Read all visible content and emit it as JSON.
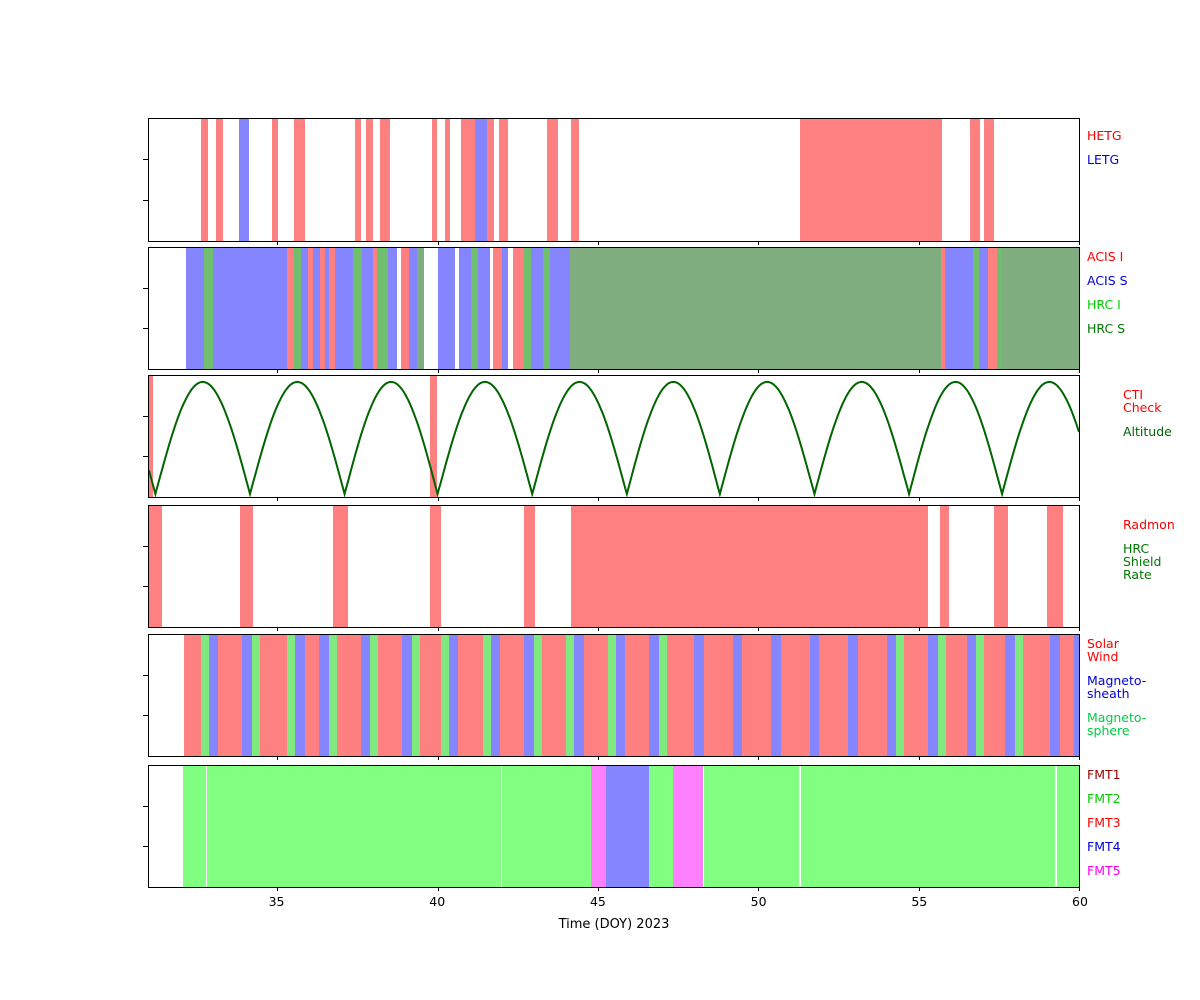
{
  "chart_data": {
    "type": "timeline-bands",
    "title": "",
    "xlabel": "Time (DOY) 2023",
    "x_range": [
      31,
      60
    ],
    "x_ticks": [
      35,
      40,
      45,
      50,
      55,
      60
    ],
    "grid": false,
    "legend_position": "right",
    "series_colors": {
      "HETG": "#ff8080",
      "LETG": "#8585ff",
      "ACIS_I": "#ff8080",
      "ACIS_S": "#8585ff",
      "HRC_I": "#6fbf6f",
      "HRC_S": "#7fad7f",
      "CTI": "#ff8080",
      "RADMON": "#ff8080",
      "SW": "#ff8080",
      "MSH": "#8585ff",
      "MSP": "#7fe87f",
      "FMT1": "#a05050",
      "FMT2": "#80ff80",
      "FMT3": "#ff8080",
      "FMT4": "#8585ff",
      "FMT5": "#ff80ff"
    },
    "altitude_curve_color": "#006400",
    "panels": [
      {
        "id": "gratings",
        "legend": [
          {
            "label": "HETG",
            "color": "#ff0000"
          },
          {
            "label": "LETG",
            "color": "#0000dd"
          }
        ],
        "bands": [
          {
            "series": "HETG",
            "start": 32.62,
            "end": 32.85
          },
          {
            "series": "HETG",
            "start": 33.08,
            "end": 33.3
          },
          {
            "series": "LETG",
            "start": 33.82,
            "end": 34.12
          },
          {
            "series": "HETG",
            "start": 34.82,
            "end": 35.02
          },
          {
            "series": "HETG",
            "start": 35.52,
            "end": 35.88
          },
          {
            "series": "HETG",
            "start": 37.42,
            "end": 37.6
          },
          {
            "series": "HETG",
            "start": 37.76,
            "end": 37.98
          },
          {
            "series": "HETG",
            "start": 38.2,
            "end": 38.5
          },
          {
            "series": "HETG",
            "start": 39.82,
            "end": 39.98
          },
          {
            "series": "HETG",
            "start": 40.22,
            "end": 40.4
          },
          {
            "series": "HETG",
            "start": 40.72,
            "end": 41.18
          },
          {
            "series": "LETG",
            "start": 41.18,
            "end": 41.55
          },
          {
            "series": "HETG",
            "start": 41.55,
            "end": 41.75
          },
          {
            "series": "HETG",
            "start": 41.9,
            "end": 42.2
          },
          {
            "series": "HETG",
            "start": 43.42,
            "end": 43.75
          },
          {
            "series": "HETG",
            "start": 44.15,
            "end": 44.4
          },
          {
            "series": "HETG",
            "start": 51.3,
            "end": 55.72
          },
          {
            "series": "HETG",
            "start": 56.6,
            "end": 56.9
          },
          {
            "series": "HETG",
            "start": 57.05,
            "end": 57.35
          }
        ]
      },
      {
        "id": "instruments",
        "legend": [
          {
            "label": "ACIS I",
            "color": "#ff0000"
          },
          {
            "label": "ACIS S",
            "color": "#0000dd"
          },
          {
            "label": "HRC I",
            "color": "#00cc00"
          },
          {
            "label": "HRC S",
            "color": "#007700"
          }
        ],
        "bands": [
          {
            "series": "ACIS_S",
            "start": 32.15,
            "end": 32.72
          },
          {
            "series": "HRC_I",
            "start": 32.72,
            "end": 33.0
          },
          {
            "series": "ACIS_S",
            "start": 33.0,
            "end": 35.3
          },
          {
            "series": "ACIS_I",
            "start": 35.3,
            "end": 35.52
          },
          {
            "series": "HRC_I",
            "start": 35.52,
            "end": 35.74
          },
          {
            "series": "ACIS_S",
            "start": 35.74,
            "end": 35.95
          },
          {
            "series": "ACIS_I",
            "start": 35.95,
            "end": 36.12
          },
          {
            "series": "ACIS_S",
            "start": 36.12,
            "end": 36.32
          },
          {
            "series": "ACIS_I",
            "start": 36.32,
            "end": 36.48
          },
          {
            "series": "ACIS_S",
            "start": 36.48,
            "end": 36.62
          },
          {
            "series": "ACIS_I",
            "start": 36.62,
            "end": 36.8
          },
          {
            "series": "ACIS_S",
            "start": 36.8,
            "end": 37.35
          },
          {
            "series": "HRC_I",
            "start": 37.35,
            "end": 37.65
          },
          {
            "series": "ACIS_S",
            "start": 37.65,
            "end": 38.0
          },
          {
            "series": "ACIS_I",
            "start": 38.0,
            "end": 38.12
          },
          {
            "series": "HRC_I",
            "start": 38.12,
            "end": 38.45
          },
          {
            "series": "ACIS_S",
            "start": 38.45,
            "end": 38.72
          },
          {
            "series": "ACIS_I",
            "start": 38.85,
            "end": 39.1
          },
          {
            "series": "ACIS_S",
            "start": 39.1,
            "end": 39.35
          },
          {
            "series": "HRC_S",
            "start": 39.35,
            "end": 39.58
          },
          {
            "series": "ACIS_S",
            "start": 40.0,
            "end": 40.55
          },
          {
            "series": "ACIS_S",
            "start": 40.68,
            "end": 41.05
          },
          {
            "series": "HRC_I",
            "start": 41.05,
            "end": 41.25
          },
          {
            "series": "ACIS_S",
            "start": 41.25,
            "end": 41.62
          },
          {
            "series": "ACIS_I",
            "start": 41.72,
            "end": 42.0
          },
          {
            "series": "ACIS_S",
            "start": 42.0,
            "end": 42.2
          },
          {
            "series": "ACIS_I",
            "start": 42.35,
            "end": 42.68
          },
          {
            "series": "HRC_I",
            "start": 42.68,
            "end": 42.9
          },
          {
            "series": "ACIS_S",
            "start": 42.9,
            "end": 43.3
          },
          {
            "series": "HRC_I",
            "start": 43.3,
            "end": 43.5
          },
          {
            "series": "ACIS_S",
            "start": 43.5,
            "end": 44.12
          },
          {
            "series": "HRC_S",
            "start": 44.12,
            "end": 55.7
          },
          {
            "series": "ACIS_I",
            "start": 55.7,
            "end": 55.82
          },
          {
            "series": "ACIS_S",
            "start": 55.82,
            "end": 56.7
          },
          {
            "series": "HRC_I",
            "start": 56.7,
            "end": 56.88
          },
          {
            "series": "ACIS_S",
            "start": 56.88,
            "end": 57.15
          },
          {
            "series": "ACIS_I",
            "start": 57.15,
            "end": 57.45
          },
          {
            "series": "HRC_I",
            "start": 57.45,
            "end": 57.6
          },
          {
            "series": "HRC_S",
            "start": 57.6,
            "end": 60.0
          }
        ]
      },
      {
        "id": "altitude",
        "legend": [
          {
            "label": "CTI\nCheck",
            "color": "#ff0000"
          },
          {
            "label": "Altitude",
            "color": "#006400"
          }
        ],
        "bands": [
          {
            "series": "CTI",
            "start": 31.0,
            "end": 31.12
          },
          {
            "series": "CTI",
            "start": 39.75,
            "end": 39.98
          }
        ],
        "altitude": {
          "perigees": [
            28.25,
            31.2,
            34.15,
            37.1,
            40.0,
            42.95,
            45.9,
            48.8,
            51.75,
            54.7,
            57.6,
            60.55
          ]
        }
      },
      {
        "id": "radmon",
        "legend": [
          {
            "label": "Radmon",
            "color": "#ff0000"
          },
          {
            "label": "HRC\nShield\nRate",
            "color": "#007700"
          }
        ],
        "bands": [
          {
            "series": "RADMON",
            "start": 31.0,
            "end": 31.4
          },
          {
            "series": "RADMON",
            "start": 33.85,
            "end": 34.25
          },
          {
            "series": "RADMON",
            "start": 36.75,
            "end": 37.2
          },
          {
            "series": "RADMON",
            "start": 39.75,
            "end": 40.12
          },
          {
            "series": "RADMON",
            "start": 42.68,
            "end": 43.05
          },
          {
            "series": "RADMON",
            "start": 44.15,
            "end": 55.28
          },
          {
            "series": "RADMON",
            "start": 55.65,
            "end": 55.95
          },
          {
            "series": "RADMON",
            "start": 57.35,
            "end": 57.8
          },
          {
            "series": "RADMON",
            "start": 59.0,
            "end": 59.5
          }
        ]
      },
      {
        "id": "solarwind",
        "legend": [
          {
            "label": "Solar\nWind",
            "color": "#ff0000"
          },
          {
            "label": "Magneto-\nsheath",
            "color": "#0000dd"
          },
          {
            "label": "Magneto-\nsphere",
            "color": "#00cc44"
          }
        ],
        "bands": [
          {
            "series": "SW",
            "start": 32.1,
            "end": 32.62
          },
          {
            "series": "MSP",
            "start": 32.62,
            "end": 32.88
          },
          {
            "series": "MSH",
            "start": 32.88,
            "end": 33.15
          },
          {
            "series": "SW",
            "start": 33.15,
            "end": 33.9
          },
          {
            "series": "MSH",
            "start": 33.9,
            "end": 34.2
          },
          {
            "series": "MSP",
            "start": 34.2,
            "end": 34.45
          },
          {
            "series": "SW",
            "start": 34.45,
            "end": 35.3
          },
          {
            "series": "MSP",
            "start": 35.3,
            "end": 35.55
          },
          {
            "series": "MSH",
            "start": 35.55,
            "end": 35.85
          },
          {
            "series": "SW",
            "start": 35.85,
            "end": 36.3
          },
          {
            "series": "MSH",
            "start": 36.3,
            "end": 36.6
          },
          {
            "series": "MSP",
            "start": 36.6,
            "end": 36.85
          },
          {
            "series": "SW",
            "start": 36.85,
            "end": 37.6
          },
          {
            "series": "MSH",
            "start": 37.6,
            "end": 37.9
          },
          {
            "series": "MSP",
            "start": 37.9,
            "end": 38.15
          },
          {
            "series": "SW",
            "start": 38.15,
            "end": 38.9
          },
          {
            "series": "MSH",
            "start": 38.9,
            "end": 39.2
          },
          {
            "series": "MSP",
            "start": 39.2,
            "end": 39.45
          },
          {
            "series": "SW",
            "start": 39.45,
            "end": 40.1
          },
          {
            "series": "MSP",
            "start": 40.1,
            "end": 40.35
          },
          {
            "series": "MSH",
            "start": 40.35,
            "end": 40.65
          },
          {
            "series": "SW",
            "start": 40.65,
            "end": 41.4
          },
          {
            "series": "MSP",
            "start": 41.4,
            "end": 41.65
          },
          {
            "series": "MSH",
            "start": 41.65,
            "end": 41.95
          },
          {
            "series": "SW",
            "start": 41.95,
            "end": 42.7
          },
          {
            "series": "MSH",
            "start": 42.7,
            "end": 43.0
          },
          {
            "series": "MSP",
            "start": 43.0,
            "end": 43.25
          },
          {
            "series": "SW",
            "start": 43.25,
            "end": 44.0
          },
          {
            "series": "MSP",
            "start": 44.0,
            "end": 44.25
          },
          {
            "series": "MSH",
            "start": 44.25,
            "end": 44.55
          },
          {
            "series": "SW",
            "start": 44.55,
            "end": 45.3
          },
          {
            "series": "MSP",
            "start": 45.3,
            "end": 45.55
          },
          {
            "series": "MSH",
            "start": 45.55,
            "end": 45.85
          },
          {
            "series": "SW",
            "start": 45.85,
            "end": 46.6
          },
          {
            "series": "MSH",
            "start": 46.6,
            "end": 46.9
          },
          {
            "series": "MSP",
            "start": 46.9,
            "end": 47.15
          },
          {
            "series": "SW",
            "start": 47.15,
            "end": 48.0
          },
          {
            "series": "MSH",
            "start": 48.0,
            "end": 48.3
          },
          {
            "series": "SW",
            "start": 48.3,
            "end": 49.2
          },
          {
            "series": "MSH",
            "start": 49.2,
            "end": 49.5
          },
          {
            "series": "SW",
            "start": 49.5,
            "end": 50.4
          },
          {
            "series": "MSH",
            "start": 50.4,
            "end": 50.7
          },
          {
            "series": "SW",
            "start": 50.7,
            "end": 51.6
          },
          {
            "series": "MSH",
            "start": 51.6,
            "end": 51.9
          },
          {
            "series": "SW",
            "start": 51.9,
            "end": 52.8
          },
          {
            "series": "MSH",
            "start": 52.8,
            "end": 53.1
          },
          {
            "series": "SW",
            "start": 53.1,
            "end": 54.0
          },
          {
            "series": "MSH",
            "start": 54.0,
            "end": 54.3
          },
          {
            "series": "MSP",
            "start": 54.3,
            "end": 54.55
          },
          {
            "series": "SW",
            "start": 54.55,
            "end": 55.3
          },
          {
            "series": "MSH",
            "start": 55.3,
            "end": 55.6
          },
          {
            "series": "MSP",
            "start": 55.6,
            "end": 55.85
          },
          {
            "series": "SW",
            "start": 55.85,
            "end": 56.5
          },
          {
            "series": "MSH",
            "start": 56.5,
            "end": 56.8
          },
          {
            "series": "MSP",
            "start": 56.8,
            "end": 57.05
          },
          {
            "series": "SW",
            "start": 57.05,
            "end": 57.7
          },
          {
            "series": "MSH",
            "start": 57.7,
            "end": 58.0
          },
          {
            "series": "MSP",
            "start": 58.0,
            "end": 58.25
          },
          {
            "series": "SW",
            "start": 58.25,
            "end": 59.1
          },
          {
            "series": "MSH",
            "start": 59.1,
            "end": 59.4
          },
          {
            "series": "SW",
            "start": 59.4,
            "end": 59.85
          },
          {
            "series": "MSH",
            "start": 59.85,
            "end": 60.0
          }
        ]
      },
      {
        "id": "fmt",
        "legend": [
          {
            "label": "FMT1",
            "color": "#990000"
          },
          {
            "label": "FMT2",
            "color": "#00cc00"
          },
          {
            "label": "FMT3",
            "color": "#ff0000"
          },
          {
            "label": "FMT4",
            "color": "#0000dd"
          },
          {
            "label": "FMT5",
            "color": "#ff00ff"
          }
        ],
        "bands": [
          {
            "series": "FMT2",
            "start": 32.05,
            "end": 32.78
          },
          {
            "series": "FMT2",
            "start": 32.82,
            "end": 41.97
          },
          {
            "series": "FMT2",
            "start": 42.02,
            "end": 44.78
          },
          {
            "series": "FMT5",
            "start": 44.78,
            "end": 45.25
          },
          {
            "series": "FMT4",
            "start": 45.25,
            "end": 46.58
          },
          {
            "series": "FMT2",
            "start": 46.58,
            "end": 47.33
          },
          {
            "series": "FMT5",
            "start": 47.33,
            "end": 48.28
          },
          {
            "series": "FMT2",
            "start": 48.32,
            "end": 51.27
          },
          {
            "series": "FMT2",
            "start": 51.32,
            "end": 59.25
          },
          {
            "series": "FMT2",
            "start": 59.3,
            "end": 60.0
          }
        ]
      }
    ]
  }
}
